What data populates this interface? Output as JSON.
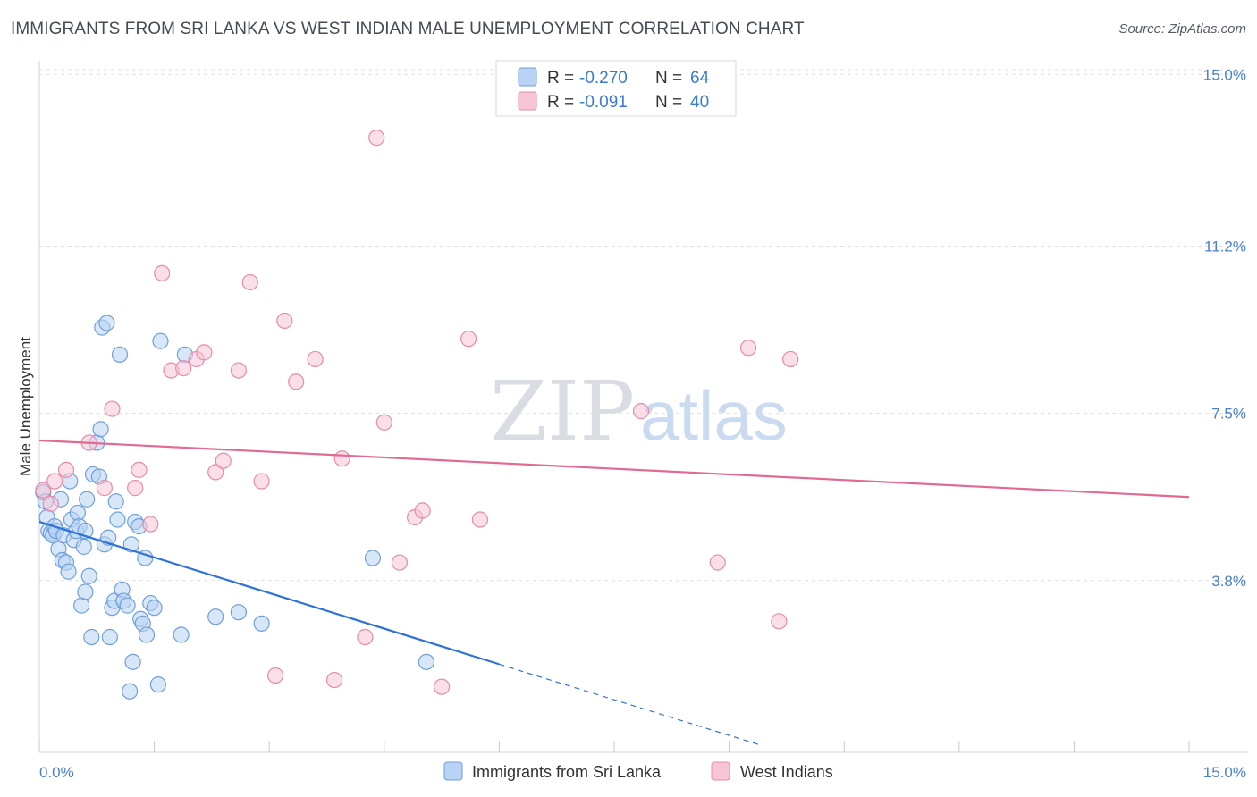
{
  "header": {
    "title": "IMMIGRANTS FROM SRI LANKA VS WEST INDIAN MALE UNEMPLOYMENT CORRELATION CHART",
    "source": "Source: ZipAtlas.com"
  },
  "watermark": {
    "zip": "ZIP",
    "atlas": "atlas"
  },
  "colors": {
    "blue_fill": "#b8d3f3",
    "blue_stroke": "#6f9fdc",
    "blue_line": "#2f72d6",
    "pink_fill": "#f7c5d5",
    "pink_stroke": "#e88aa8",
    "pink_line": "#e06a94",
    "tick": "#4a7fd0",
    "grid": "#dde1e6"
  },
  "legend": {
    "rows": [
      {
        "r_label": "R =",
        "r_value": "-0.270",
        "n_label": "N =",
        "n_value": "64"
      },
      {
        "r_label": "R =",
        "r_value": "-0.091",
        "n_label": "N =",
        "n_value": "40"
      }
    ]
  },
  "chart_data": {
    "type": "scatter",
    "title": "IMMIGRANTS FROM SRI LANKA VS WEST INDIAN MALE UNEMPLOYMENT CORRELATION CHART",
    "xlabel": "",
    "ylabel": "Male Unemployment",
    "xlim": [
      0,
      15
    ],
    "ylim": [
      0,
      15.5
    ],
    "x_ticks": [
      "0.0%",
      "15.0%"
    ],
    "y_ticks": [
      {
        "value": 3.8,
        "label": "3.8%"
      },
      {
        "value": 7.5,
        "label": "7.5%"
      },
      {
        "value": 11.2,
        "label": "11.2%"
      },
      {
        "value": 15.0,
        "label": "15.0%"
      }
    ],
    "series": [
      {
        "name": "Immigrants from Sri Lanka",
        "color": "blue",
        "r": -0.27,
        "n": 64,
        "trend": {
          "x0": 0,
          "y0": 5.1,
          "x1": 6.0,
          "y1": 1.95,
          "dash_to_x": 9.4
        },
        "points": [
          [
            0.05,
            5.75
          ],
          [
            0.08,
            5.55
          ],
          [
            0.1,
            5.2
          ],
          [
            0.12,
            4.9
          ],
          [
            0.15,
            4.85
          ],
          [
            0.18,
            4.8
          ],
          [
            0.2,
            5.0
          ],
          [
            0.22,
            4.9
          ],
          [
            0.25,
            4.5
          ],
          [
            0.28,
            5.6
          ],
          [
            0.3,
            4.25
          ],
          [
            0.32,
            4.8
          ],
          [
            0.35,
            4.2
          ],
          [
            0.38,
            4.0
          ],
          [
            0.4,
            6.0
          ],
          [
            0.42,
            5.15
          ],
          [
            0.45,
            4.7
          ],
          [
            0.48,
            4.9
          ],
          [
            0.5,
            5.3
          ],
          [
            0.52,
            5.0
          ],
          [
            0.55,
            3.25
          ],
          [
            0.58,
            4.55
          ],
          [
            0.6,
            3.55
          ],
          [
            0.62,
            5.6
          ],
          [
            0.65,
            3.9
          ],
          [
            0.68,
            2.55
          ],
          [
            0.7,
            6.15
          ],
          [
            0.75,
            6.85
          ],
          [
            0.78,
            6.1
          ],
          [
            0.8,
            7.15
          ],
          [
            0.82,
            9.4
          ],
          [
            0.85,
            4.6
          ],
          [
            0.88,
            9.5
          ],
          [
            0.9,
            4.75
          ],
          [
            0.92,
            2.55
          ],
          [
            0.95,
            3.2
          ],
          [
            0.98,
            3.35
          ],
          [
            1.0,
            5.55
          ],
          [
            1.02,
            5.15
          ],
          [
            1.05,
            8.8
          ],
          [
            1.08,
            3.6
          ],
          [
            1.1,
            3.35
          ],
          [
            1.15,
            3.25
          ],
          [
            1.18,
            1.35
          ],
          [
            1.2,
            4.6
          ],
          [
            1.22,
            2.0
          ],
          [
            1.25,
            5.1
          ],
          [
            1.3,
            5.0
          ],
          [
            1.32,
            2.95
          ],
          [
            1.35,
            2.85
          ],
          [
            1.38,
            4.3
          ],
          [
            1.4,
            2.6
          ],
          [
            1.45,
            3.3
          ],
          [
            1.5,
            3.2
          ],
          [
            1.55,
            1.5
          ],
          [
            1.58,
            9.1
          ],
          [
            1.85,
            2.6
          ],
          [
            1.9,
            8.8
          ],
          [
            2.3,
            3.0
          ],
          [
            2.6,
            3.1
          ],
          [
            2.9,
            2.85
          ],
          [
            4.35,
            4.3
          ],
          [
            5.05,
            2.0
          ],
          [
            0.6,
            4.9
          ]
        ]
      },
      {
        "name": "West Indians",
        "color": "pink",
        "r": -0.091,
        "n": 40,
        "trend": {
          "x0": 0,
          "y0": 6.9,
          "x1": 15.0,
          "y1": 5.65
        },
        "points": [
          [
            0.05,
            5.8
          ],
          [
            0.15,
            5.5
          ],
          [
            0.2,
            6.0
          ],
          [
            0.35,
            6.25
          ],
          [
            0.65,
            6.85
          ],
          [
            0.85,
            5.85
          ],
          [
            0.95,
            7.6
          ],
          [
            1.25,
            5.85
          ],
          [
            1.3,
            6.25
          ],
          [
            1.45,
            5.05
          ],
          [
            1.6,
            10.6
          ],
          [
            1.72,
            8.45
          ],
          [
            1.88,
            8.5
          ],
          [
            2.05,
            8.7
          ],
          [
            2.15,
            8.85
          ],
          [
            2.3,
            6.2
          ],
          [
            2.4,
            6.45
          ],
          [
            2.6,
            8.45
          ],
          [
            2.75,
            10.4
          ],
          [
            2.9,
            6.0
          ],
          [
            3.08,
            1.7
          ],
          [
            3.2,
            9.55
          ],
          [
            3.35,
            8.2
          ],
          [
            3.6,
            8.7
          ],
          [
            3.85,
            1.6
          ],
          [
            3.95,
            6.5
          ],
          [
            4.25,
            2.55
          ],
          [
            4.4,
            13.6
          ],
          [
            4.5,
            7.3
          ],
          [
            4.7,
            4.2
          ],
          [
            4.9,
            5.2
          ],
          [
            5.0,
            5.35
          ],
          [
            5.25,
            1.45
          ],
          [
            5.6,
            9.15
          ],
          [
            5.75,
            5.15
          ],
          [
            7.85,
            7.55
          ],
          [
            8.85,
            4.2
          ],
          [
            9.25,
            8.95
          ],
          [
            9.65,
            2.9
          ],
          [
            9.8,
            8.7
          ]
        ]
      }
    ]
  }
}
